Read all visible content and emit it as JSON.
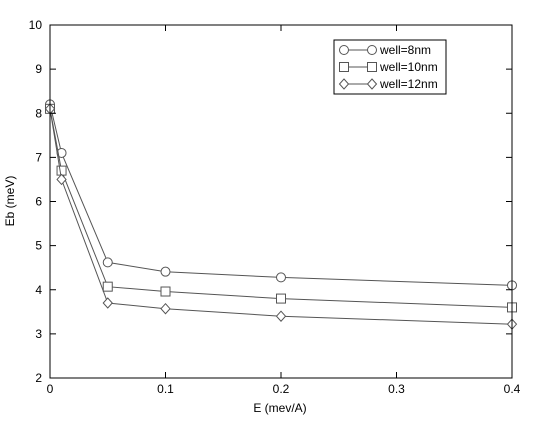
{
  "chart_data": {
    "type": "line",
    "title": "",
    "xlabel": "E (mev/A)",
    "ylabel": "Eb (meV)",
    "xlim": [
      0,
      0.4
    ],
    "ylim": [
      2,
      10
    ],
    "x_ticks": [
      "0",
      "0.1",
      "0.2",
      "0.3",
      "0.4"
    ],
    "y_ticks": [
      "2",
      "3",
      "4",
      "5",
      "6",
      "7",
      "8",
      "9",
      "10"
    ],
    "grid": false,
    "legend_position": "top-right",
    "x": [
      0,
      0.01,
      0.05,
      0.1,
      0.2,
      0.4
    ],
    "series": [
      {
        "name": "well=8nm",
        "marker": "circle",
        "values": [
          8.2,
          7.1,
          4.62,
          4.41,
          4.28,
          4.1
        ]
      },
      {
        "name": "well=10nm",
        "marker": "square",
        "values": [
          8.1,
          6.7,
          4.07,
          3.96,
          3.8,
          3.6
        ]
      },
      {
        "name": "well=12nm",
        "marker": "diamond",
        "values": [
          8.1,
          6.5,
          3.7,
          3.57,
          3.4,
          3.22
        ]
      }
    ],
    "colors": {
      "line": "#555555",
      "axis": "#000000"
    }
  }
}
